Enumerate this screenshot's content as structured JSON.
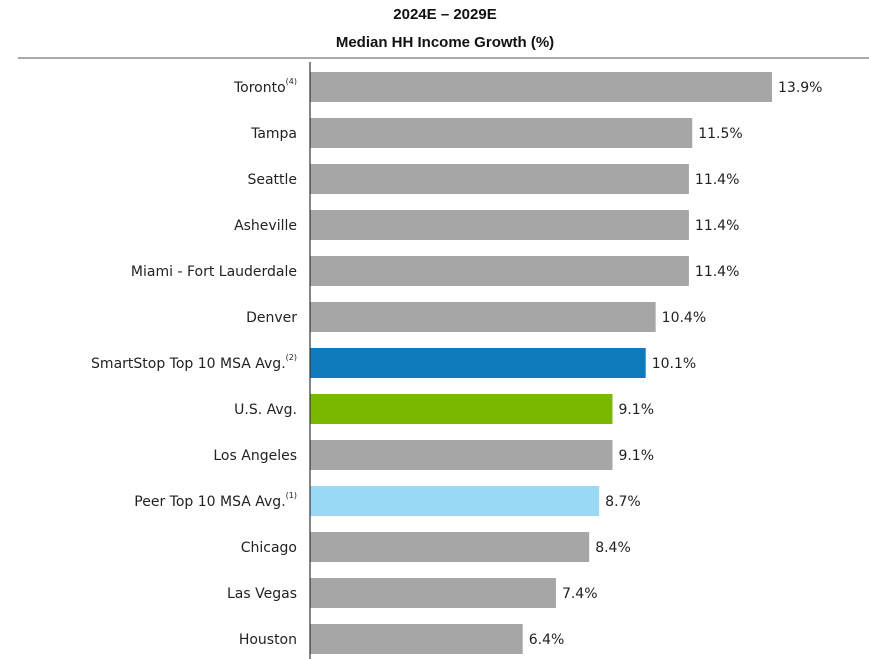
{
  "chart_data": {
    "type": "bar",
    "orientation": "horizontal",
    "title": "2024E – 2029E",
    "subtitle": "Median HH Income Growth (%)",
    "categories": [
      "Toronto",
      "Tampa",
      "Seattle",
      "Asheville",
      "Miami - Fort Lauderdale",
      "Denver",
      "SmartStop Top 10 MSA Avg.",
      "U.S. Avg.",
      "Los Angeles",
      "Peer Top 10 MSA Avg.",
      "Chicago",
      "Las Vegas",
      "Houston"
    ],
    "category_notes": [
      "(4)",
      null,
      null,
      null,
      null,
      null,
      "(2)",
      null,
      null,
      "(1)",
      null,
      null,
      null
    ],
    "values": [
      13.9,
      11.5,
      11.4,
      11.4,
      11.4,
      10.4,
      10.1,
      9.1,
      9.1,
      8.7,
      8.4,
      7.4,
      6.4
    ],
    "value_labels": [
      "13.9%",
      "11.5%",
      "11.4%",
      "11.4%",
      "11.4%",
      "10.4%",
      "10.1%",
      "9.1%",
      "9.1%",
      "8.7%",
      "8.4%",
      "7.4%",
      "6.4%"
    ],
    "colors": [
      "#a6a6a6",
      "#a6a6a6",
      "#a6a6a6",
      "#a6a6a6",
      "#a6a6a6",
      "#a6a6a6",
      "#0f7bbd",
      "#7ab800",
      "#a6a6a6",
      "#99d9f5",
      "#a6a6a6",
      "#a6a6a6",
      "#a6a6a6"
    ]
  }
}
